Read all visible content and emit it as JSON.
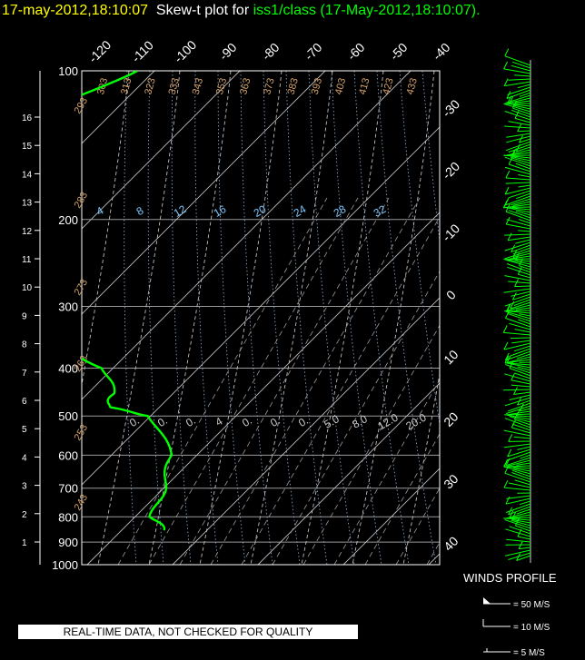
{
  "header": {
    "datetime": "17-may-2012,18:10:07",
    "plot_label": "Skew-t plot for",
    "source": "iss1/class",
    "source_time": "(17-May-2012,18:10:07)."
  },
  "quality_notice": "REAL-TIME DATA, NOT CHECKED FOR QUALITY",
  "winds_panel": {
    "title": "WINDS PROFILE",
    "legend": [
      {
        "label": "= 50 M/S"
      },
      {
        "label": "= 10 M/S"
      },
      {
        "label": "= 5 M/S"
      }
    ]
  },
  "colors": {
    "background": "#000000",
    "profile": "#00ff00",
    "grid": "#ffffff",
    "isotherm_label": "#ffffff",
    "theta_label": "#d2a06a",
    "theta_e_label": "#c8c8c8",
    "mixing_ratio_label": "#7ec8ff",
    "header_date": "#ffff00"
  },
  "chart_data": {
    "type": "skew-t",
    "pressure_levels_hpa": [
      100,
      200,
      300,
      400,
      500,
      600,
      700,
      800,
      900,
      1000
    ],
    "height_km_ticks": [
      1,
      2,
      3,
      4,
      5,
      6,
      7,
      8,
      9,
      10,
      11,
      12,
      13,
      14,
      15,
      16
    ],
    "isotherm_labels_top": [
      "-120",
      "-110",
      "-100",
      "-90",
      "-80",
      "-70",
      "-60",
      "-50",
      "-40"
    ],
    "isotherm_labels_right": [
      "-30",
      "-20",
      "-10",
      "0",
      "10",
      "20",
      "30",
      "40"
    ],
    "dry_adiabat_labels": [
      "293",
      "283",
      "273",
      "263",
      "253",
      "243"
    ],
    "theta_e_labels_top": [
      "303",
      "313",
      "323",
      "333",
      "343",
      "353",
      "363",
      "373",
      "383",
      "393",
      "403",
      "413",
      "423",
      "433"
    ],
    "mixing_ratio_labels_upper": [
      "4",
      "8",
      "12",
      "16",
      "20",
      "24",
      "28",
      "32"
    ],
    "mixing_ratio_labels_lower": [
      "0.",
      "0.",
      "0.",
      "4",
      "0.",
      "0.",
      "0.",
      "5.0",
      "8.0",
      "12.0",
      "20.0"
    ],
    "series": [
      {
        "name": "temperature",
        "points": [
          [
            852,
            -22
          ],
          [
            800,
            -28
          ],
          [
            700,
            -36
          ],
          [
            600,
            -47
          ],
          [
            500,
            -58
          ],
          [
            400,
            -68
          ],
          [
            300,
            -80
          ],
          [
            250,
            -86
          ],
          [
            200,
            -90
          ],
          [
            150,
            -75
          ],
          [
            120,
            -68
          ],
          [
            100,
            -62
          ]
        ]
      },
      {
        "name": "dewpoint",
        "points": [
          [
            852,
            -5
          ],
          [
            800,
            -8
          ],
          [
            700,
            -10
          ],
          [
            600,
            -13
          ],
          [
            500,
            -20
          ],
          [
            480,
            -26
          ],
          [
            450,
            -27
          ],
          [
            400,
            -31
          ],
          [
            360,
            -40
          ],
          [
            350,
            -48
          ],
          [
            300,
            -53
          ],
          [
            250,
            -62
          ],
          [
            200,
            -68
          ],
          [
            150,
            -72
          ],
          [
            120,
            -78
          ],
          [
            100,
            -86
          ]
        ]
      }
    ]
  }
}
